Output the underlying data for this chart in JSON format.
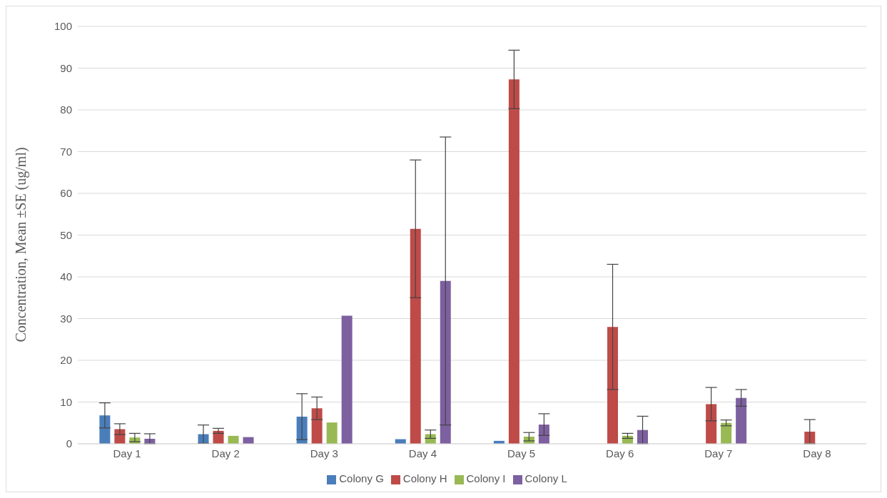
{
  "chart_data": {
    "type": "bar",
    "ylabel": "Concentration, Mean ±SE  (ug/ml)",
    "categories": [
      "Day 1",
      "Day 2",
      "Day 3",
      "Day 4",
      "Day 5",
      "Day 6",
      "Day 7",
      "Day 8"
    ],
    "series": [
      {
        "name": "Colony G",
        "color": "#4a7ebb",
        "values": [
          6.8,
          2.3,
          6.5,
          1.1,
          0.7,
          null,
          null,
          null
        ],
        "errors": [
          3,
          2.2,
          5.5,
          null,
          null,
          null,
          null,
          null
        ]
      },
      {
        "name": "Colony H",
        "color": "#be4b48",
        "values": [
          3.5,
          3.1,
          8.5,
          51.5,
          87.3,
          28,
          9.5,
          2.9
        ],
        "errors": [
          1.3,
          0.6,
          2.7,
          16.5,
          7,
          15,
          4,
          2.9
        ]
      },
      {
        "name": "Colony I",
        "color": "#98b954",
        "values": [
          1.5,
          1.9,
          5.1,
          2.3,
          1.7,
          1.9,
          5,
          null
        ],
        "errors": [
          1,
          null,
          null,
          1,
          1,
          0.6,
          0.7,
          null
        ]
      },
      {
        "name": "Colony L",
        "color": "#7d60a0",
        "values": [
          1.2,
          1.6,
          30.7,
          39,
          4.6,
          3.3,
          11,
          null
        ],
        "errors": [
          1.2,
          null,
          null,
          34.5,
          2.6,
          3.3,
          2,
          null
        ]
      }
    ],
    "ylim": [
      0,
      100
    ],
    "yticks": [
      0,
      10,
      20,
      30,
      40,
      50,
      60,
      70,
      80,
      90,
      100
    ],
    "grid": "y",
    "legend": "bottom"
  }
}
